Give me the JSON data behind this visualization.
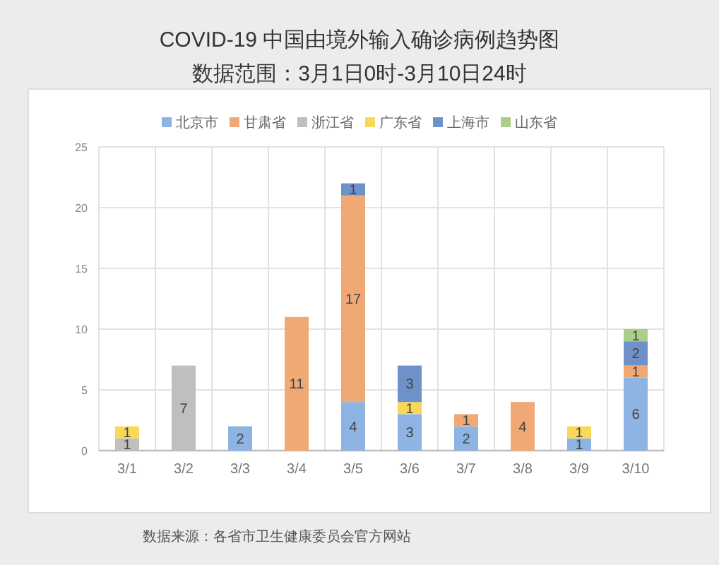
{
  "chart_data": {
    "type": "bar",
    "title": "COVID-19 中国由境外输入确诊病例趋势图",
    "subtitle": "数据范围：3月1日0时-3月10日24时",
    "categories": [
      "3/1",
      "3/2",
      "3/3",
      "3/4",
      "3/5",
      "3/6",
      "3/7",
      "3/8",
      "3/9",
      "3/10"
    ],
    "stacked": true,
    "series": [
      {
        "name": "北京市",
        "color": "#8db4e2",
        "values": [
          null,
          null,
          2,
          null,
          4,
          3,
          2,
          null,
          1,
          6
        ]
      },
      {
        "name": "甘肃省",
        "color": "#f0a875",
        "values": [
          null,
          null,
          null,
          11,
          17,
          null,
          1,
          4,
          null,
          1
        ]
      },
      {
        "name": "浙江省",
        "color": "#bfbfbf",
        "values": [
          1,
          7,
          null,
          null,
          null,
          null,
          null,
          null,
          null,
          null
        ]
      },
      {
        "name": "广东省",
        "color": "#f7d858",
        "values": [
          1,
          null,
          null,
          null,
          null,
          1,
          null,
          null,
          1,
          null
        ]
      },
      {
        "name": "上海市",
        "color": "#6f91c9",
        "values": [
          null,
          null,
          null,
          null,
          1,
          3,
          null,
          null,
          null,
          2
        ]
      },
      {
        "name": "山东省",
        "color": "#a9cf8a",
        "values": [
          null,
          null,
          null,
          null,
          null,
          null,
          null,
          null,
          null,
          1
        ]
      }
    ],
    "ylim": [
      0,
      25
    ],
    "yticks": [
      0,
      5,
      10,
      15,
      20,
      25
    ],
    "grid": true,
    "legend": "top",
    "data_labels": true,
    "annotations": [
      "数据来源：各省市卫生健康委员会官方网站"
    ]
  }
}
